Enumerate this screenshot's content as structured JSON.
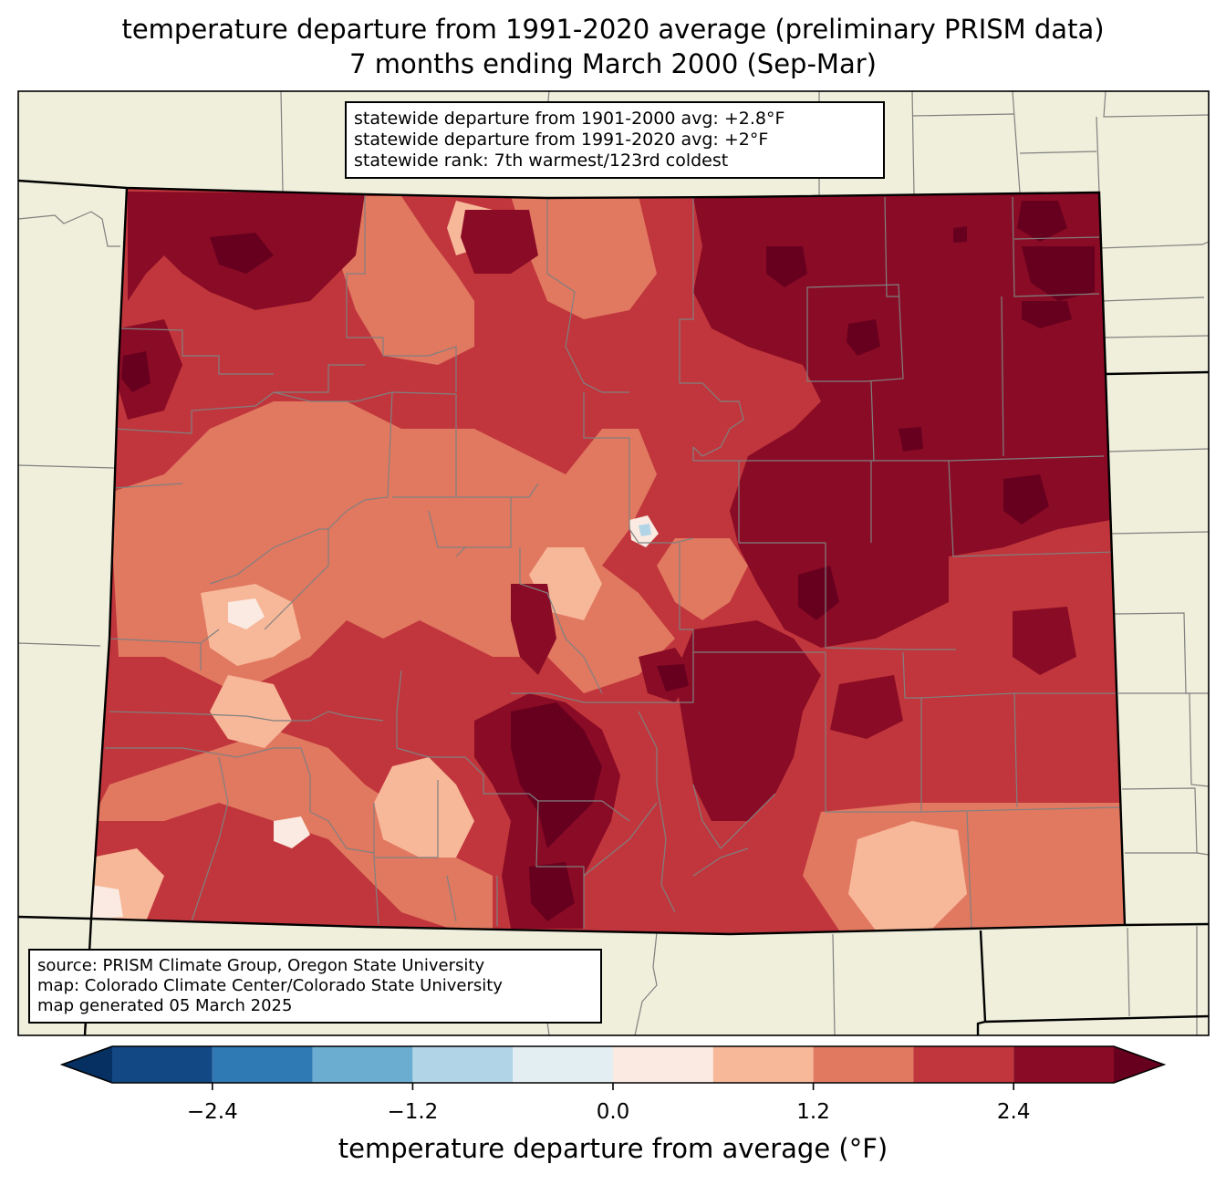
{
  "title": {
    "line1": "temperature departure from 1991-2020 average (preliminary PRISM data)",
    "line2": "7 months ending March 2000 (Sep-Mar)"
  },
  "stats": {
    "line1": "statewide departure from 1901-2000 avg: +2.8°F",
    "line2": "statewide departure from 1991-2020 avg: +2°F",
    "line3": "statewide rank: 7th warmest/123rd coldest"
  },
  "source": {
    "line1": "source: PRISM Climate Group, Oregon State University",
    "line2": "map: Colorado Climate Center/Colorado State University",
    "line3": "map generated 05 March 2025"
  },
  "colorbar": {
    "label": "temperature departure from average (°F)",
    "bounds": [
      -3.0,
      -2.4,
      -1.8,
      -1.2,
      -0.6,
      0.0,
      0.6,
      1.2,
      1.8,
      2.4,
      3.0
    ],
    "colors": [
      "#124984",
      "#2f79b5",
      "#6bacd1",
      "#b1d5e7",
      "#e3eef3",
      "#faeae1",
      "#f7b799",
      "#e17860",
      "#c0363c",
      "#8a0b25"
    ],
    "under_color": "#053061",
    "over_color": "#67001f",
    "ticks": [
      "−2.4",
      "−1.2",
      "0.0",
      "1.2",
      "2.4"
    ]
  },
  "map_colors": {
    "land": "#efefdb",
    "county_border": "#808080",
    "state_border": "#000000"
  }
}
